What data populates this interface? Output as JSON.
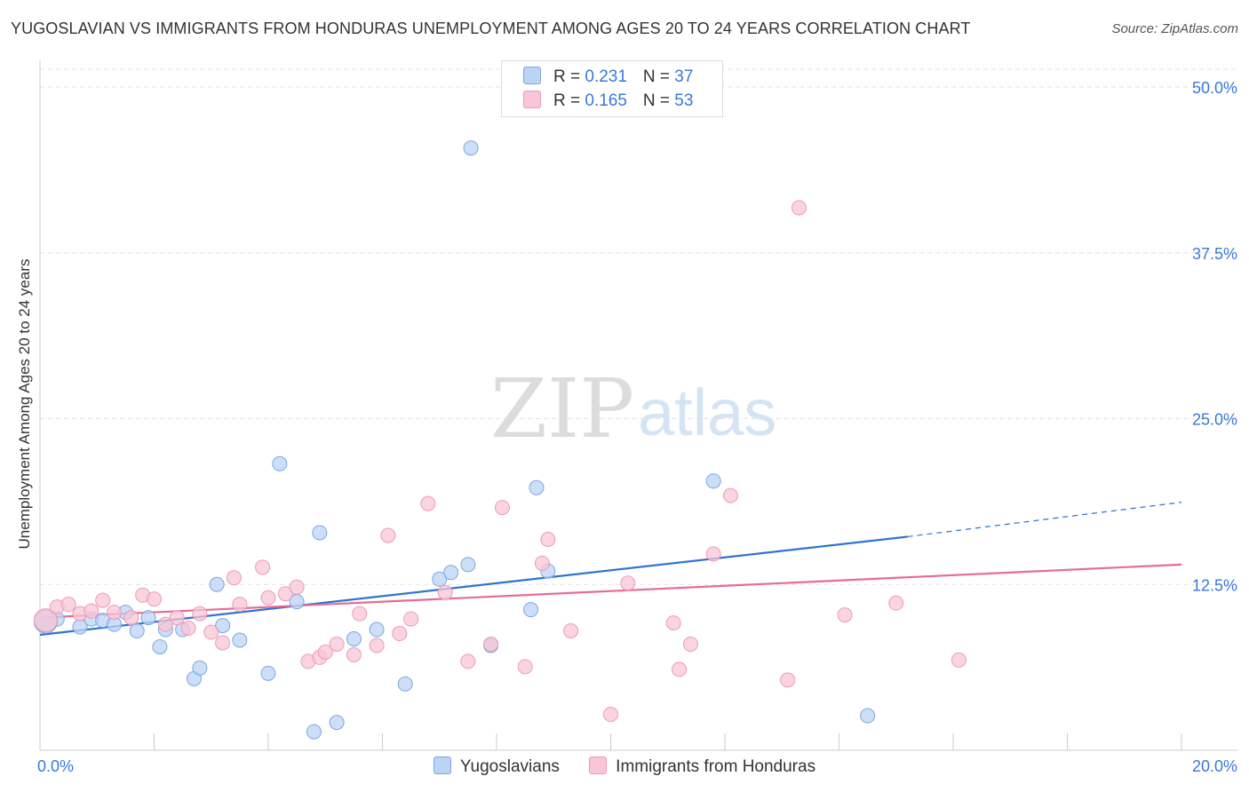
{
  "title": "YUGOSLAVIAN VS IMMIGRANTS FROM HONDURAS UNEMPLOYMENT AMONG AGES 20 TO 24 YEARS CORRELATION CHART",
  "source": "Source: ZipAtlas.com",
  "watermark": {
    "zip": "ZIP",
    "atlas": "atlas"
  },
  "colors": {
    "blue": "#2f74d0",
    "blue_fill": "#bcd4f4",
    "pink": "#e76b97",
    "pink_fill": "#f8c6d6",
    "tick_label": "#3a78d4"
  },
  "legend_top": [
    {
      "r_label": "R = ",
      "r_value": "0.231",
      "n_label": "N = ",
      "n_value": "37"
    },
    {
      "r_label": "R = ",
      "r_value": "0.165",
      "n_label": "N = ",
      "n_value": "53"
    }
  ],
  "chart_data": {
    "type": "scatter",
    "title": "YUGOSLAVIAN VS IMMIGRANTS FROM HONDURAS UNEMPLOYMENT AMONG AGES 20 TO 24 YEARS CORRELATION CHART",
    "xlabel": "",
    "ylabel": "Unemployment Among Ages 20 to 24 years",
    "xlim": [
      0,
      20
    ],
    "ylim": [
      0,
      50
    ],
    "x_tick_labels": [
      "0.0%",
      "20.0%"
    ],
    "y_ticks": [
      12.5,
      25.0,
      37.5,
      50.0
    ],
    "y_tick_labels": [
      "12.5%",
      "25.0%",
      "37.5%",
      "50.0%"
    ],
    "series": [
      {
        "name": "Yugoslavians",
        "color": "blue",
        "points": [
          [
            0.05,
            9.5
          ],
          [
            0.3,
            9.9
          ],
          [
            0.7,
            9.3
          ],
          [
            0.9,
            9.9
          ],
          [
            1.1,
            9.8
          ],
          [
            1.3,
            9.5
          ],
          [
            1.5,
            10.4
          ],
          [
            1.7,
            9.0
          ],
          [
            1.9,
            10.0
          ],
          [
            2.1,
            7.8
          ],
          [
            2.2,
            9.1
          ],
          [
            2.5,
            9.1
          ],
          [
            2.7,
            5.4
          ],
          [
            2.8,
            6.2
          ],
          [
            3.1,
            12.5
          ],
          [
            3.2,
            9.4
          ],
          [
            3.5,
            8.3
          ],
          [
            4.0,
            5.8
          ],
          [
            4.2,
            21.6
          ],
          [
            4.5,
            11.2
          ],
          [
            4.8,
            1.4
          ],
          [
            4.9,
            16.4
          ],
          [
            5.2,
            2.1
          ],
          [
            5.5,
            8.4
          ],
          [
            5.9,
            9.1
          ],
          [
            6.4,
            5.0
          ],
          [
            7.0,
            12.9
          ],
          [
            7.2,
            13.4
          ],
          [
            7.5,
            14.0
          ],
          [
            7.55,
            45.4
          ],
          [
            7.9,
            7.9
          ],
          [
            8.6,
            10.6
          ],
          [
            8.7,
            19.8
          ],
          [
            8.9,
            13.5
          ],
          [
            11.8,
            20.3
          ],
          [
            14.5,
            2.6
          ],
          [
            0.1,
            9.7
          ]
        ],
        "trend": {
          "x0": 0,
          "y0": 8.7,
          "x1": 15.2,
          "y1": 16.1,
          "dashed_to_x": 20,
          "dashed_to_y": 18.7
        }
      },
      {
        "name": "Immigrants from Honduras",
        "color": "pink",
        "points": [
          [
            0.1,
            9.8
          ],
          [
            0.3,
            10.8
          ],
          [
            0.5,
            11.0
          ],
          [
            0.7,
            10.3
          ],
          [
            0.9,
            10.5
          ],
          [
            1.1,
            11.3
          ],
          [
            1.3,
            10.4
          ],
          [
            1.6,
            10.0
          ],
          [
            1.8,
            11.7
          ],
          [
            2.0,
            11.4
          ],
          [
            2.2,
            9.5
          ],
          [
            2.4,
            10.0
          ],
          [
            2.6,
            9.2
          ],
          [
            2.8,
            10.3
          ],
          [
            3.0,
            8.9
          ],
          [
            3.2,
            8.1
          ],
          [
            3.4,
            13.0
          ],
          [
            3.5,
            11.0
          ],
          [
            3.9,
            13.8
          ],
          [
            4.0,
            11.5
          ],
          [
            4.3,
            11.8
          ],
          [
            4.5,
            12.3
          ],
          [
            4.7,
            6.7
          ],
          [
            4.9,
            7.0
          ],
          [
            5.0,
            7.4
          ],
          [
            5.2,
            8.0
          ],
          [
            5.5,
            7.2
          ],
          [
            5.6,
            10.3
          ],
          [
            5.9,
            7.9
          ],
          [
            6.1,
            16.2
          ],
          [
            6.3,
            8.8
          ],
          [
            6.5,
            9.9
          ],
          [
            6.8,
            18.6
          ],
          [
            7.1,
            11.9
          ],
          [
            7.5,
            6.7
          ],
          [
            7.9,
            8.0
          ],
          [
            8.1,
            18.3
          ],
          [
            8.5,
            6.3
          ],
          [
            8.8,
            14.1
          ],
          [
            8.9,
            15.9
          ],
          [
            9.3,
            9.0
          ],
          [
            10.0,
            2.7
          ],
          [
            10.3,
            12.6
          ],
          [
            11.1,
            9.6
          ],
          [
            11.2,
            6.1
          ],
          [
            11.4,
            8.0
          ],
          [
            11.8,
            14.8
          ],
          [
            12.1,
            19.2
          ],
          [
            13.1,
            5.3
          ],
          [
            13.3,
            40.9
          ],
          [
            14.1,
            10.2
          ],
          [
            15.0,
            11.1
          ],
          [
            16.1,
            6.8
          ]
        ],
        "trend": {
          "x0": 0,
          "y0": 10.0,
          "x1": 20,
          "y1": 14.0
        }
      }
    ]
  },
  "legend_bottom": [
    {
      "label": "Yugoslavians",
      "color": "blue"
    },
    {
      "label": "Immigrants from Honduras",
      "color": "pink"
    }
  ]
}
